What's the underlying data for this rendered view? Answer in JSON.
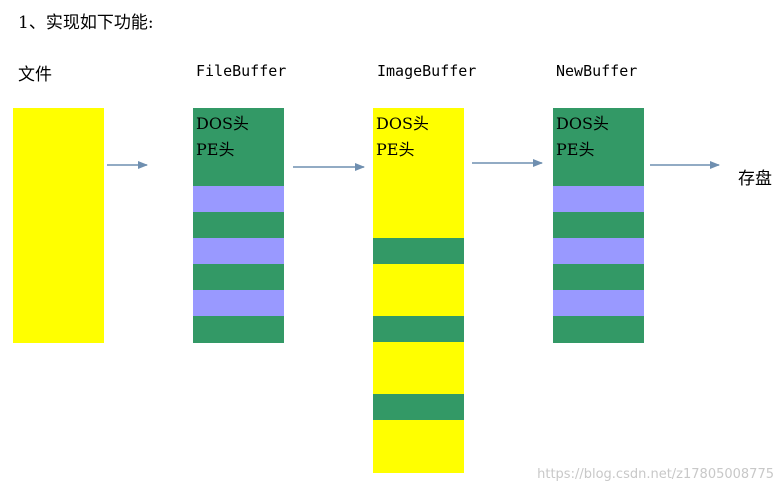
{
  "heading": "1、实现如下功能:",
  "labels": {
    "file": "文件",
    "file_buffer": "FileBuffer",
    "image_buffer": "ImageBuffer",
    "new_buffer": "NewBuffer",
    "save": "存盘"
  },
  "header_text": {
    "dos": "DOS头",
    "pe": "PE头"
  },
  "colors": {
    "yellow": "#ffff00",
    "green": "#339966",
    "purple": "#9999ff",
    "arrow": "#6f8fb0"
  },
  "watermark": "https://blog.csdn.net/z17805008775"
}
